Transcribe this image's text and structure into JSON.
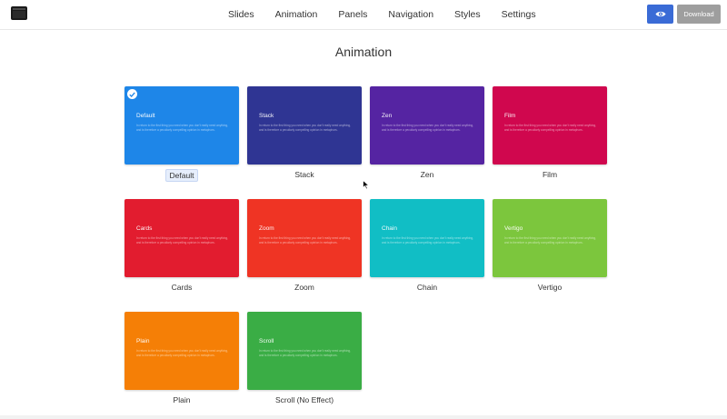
{
  "header": {
    "nav": [
      "Slides",
      "Animation",
      "Panels",
      "Navigation",
      "Styles",
      "Settings"
    ],
    "preview_icon": "eye-icon",
    "download_label": "Download",
    "colors": {
      "preview_button": "#3a6bd6",
      "download_button": "#9e9e9e"
    }
  },
  "main": {
    "title": "Animation",
    "card_body_text": "In return to the first thing you need when you don't really need anything, and is therefore a peculiarly compelling opinion in metaphors.",
    "cards": [
      {
        "name": "Default",
        "label": "Default",
        "color": "#1e86e8",
        "selected": true
      },
      {
        "name": "Stack",
        "label": "Stack",
        "color": "#2f3593",
        "selected": false
      },
      {
        "name": "Zen",
        "label": "Zen",
        "color": "#5524a2",
        "selected": false
      },
      {
        "name": "Film",
        "label": "Film",
        "color": "#d0074e",
        "selected": false
      },
      {
        "name": "Cards",
        "label": "Cards",
        "color": "#e21c2f",
        "selected": false
      },
      {
        "name": "Zoom",
        "label": "Zoom",
        "color": "#ef3424",
        "selected": false
      },
      {
        "name": "Chain",
        "label": "Chain",
        "color": "#11bec5",
        "selected": false
      },
      {
        "name": "Vertigo",
        "label": "Vertigo",
        "color": "#7cc63d",
        "selected": false
      },
      {
        "name": "Plain",
        "label": "Plain",
        "color": "#f57f06",
        "selected": false
      },
      {
        "name": "Scroll",
        "label": "Scroll (No Effect)",
        "color": "#3aad45",
        "selected": false
      }
    ]
  }
}
